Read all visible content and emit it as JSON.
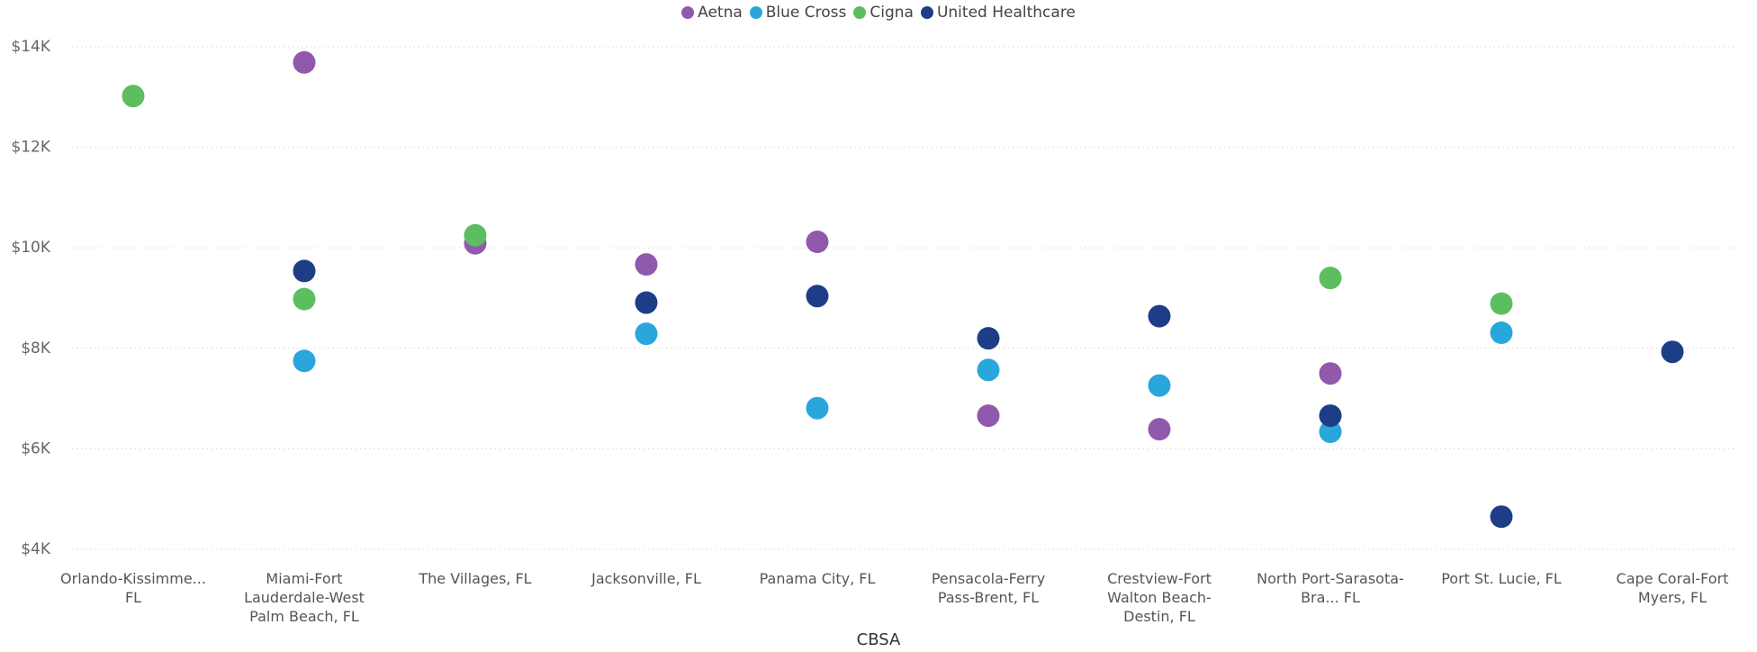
{
  "chart_data": {
    "type": "scatter",
    "x_label": "CBSA",
    "categories": [
      "Orlando-Kissimme... FL",
      "Miami-Fort Lauderdale-West Palm Beach, FL",
      "The Villages, FL",
      "Jacksonville, FL",
      "Panama City, FL",
      "Pensacola-Ferry Pass-Brent, FL",
      "Crestview-Fort Walton Beach-Destin, FL",
      "North Port-Sarasota-Bra... FL",
      "Port St. Lucie, FL",
      "Cape Coral-Fort Myers, FL"
    ],
    "series": [
      {
        "name": "Aetna",
        "color": "#9159ac",
        "values": [
          null,
          13690,
          10090,
          9670,
          10120,
          6660,
          6390,
          7500,
          null,
          null
        ]
      },
      {
        "name": "Blue Cross",
        "color": "#29a6dc",
        "values": [
          null,
          7750,
          null,
          8290,
          6810,
          7570,
          7260,
          6340,
          8310,
          null
        ]
      },
      {
        "name": "Cigna",
        "color": "#5dbe5f",
        "values": [
          13020,
          8980,
          10250,
          null,
          null,
          null,
          null,
          9400,
          8890,
          null
        ]
      },
      {
        "name": "United Healthcare",
        "color": "#1e3d87",
        "values": [
          null,
          9540,
          null,
          8910,
          9040,
          8200,
          8640,
          6660,
          4650,
          7930
        ]
      }
    ],
    "ylim": [
      4000,
      14000
    ],
    "yticks": [
      {
        "value": 4000,
        "label": "$4K"
      },
      {
        "value": 6000,
        "label": "$6K"
      },
      {
        "value": 8000,
        "label": "$8K"
      },
      {
        "value": 10000,
        "label": "$10K"
      },
      {
        "value": 12000,
        "label": "$12K"
      },
      {
        "value": 14000,
        "label": "$14K"
      }
    ],
    "grid": true,
    "legend": "top"
  }
}
